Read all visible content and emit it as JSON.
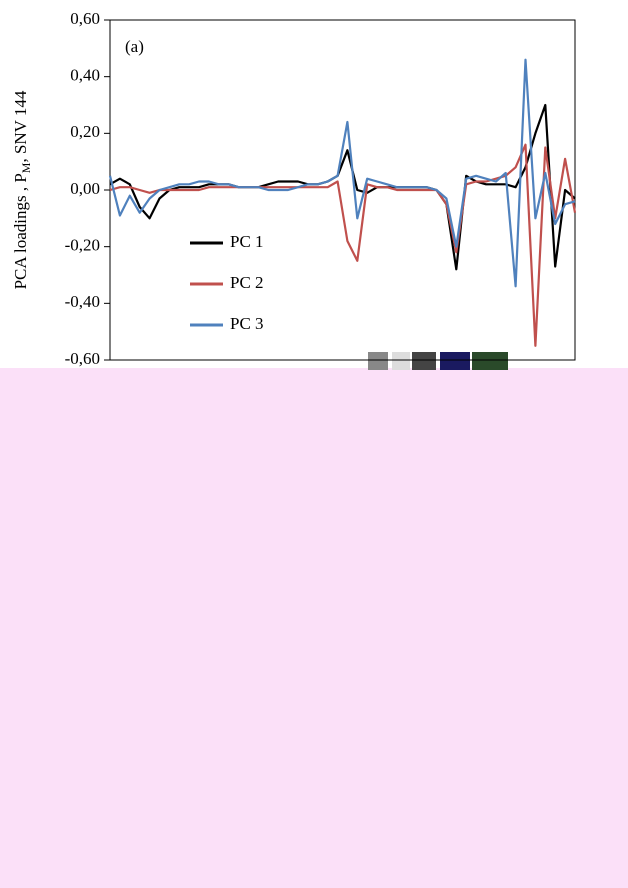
{
  "chart_data": {
    "type": "line",
    "annotation": "(a)",
    "ylabel": [
      "PCA loadings , P",
      "M",
      ", SNV 144"
    ],
    "ylim": [
      -0.6,
      0.6
    ],
    "yticks": [
      {
        "value": 0.6,
        "label": "0,60"
      },
      {
        "value": 0.4,
        "label": "0,40"
      },
      {
        "value": 0.2,
        "label": "0,20"
      },
      {
        "value": 0,
        "label": "0,00"
      },
      {
        "value": -0.2,
        "label": "-0,20"
      },
      {
        "value": -0.4,
        "label": "-0,40"
      },
      {
        "value": -0.6,
        "label": "-0,60"
      }
    ],
    "series": [
      {
        "name": "PC 1",
        "color": "#000000",
        "values": [
          0.02,
          0.04,
          0.02,
          -0.06,
          -0.1,
          -0.03,
          0,
          0.01,
          0.01,
          0.01,
          0.02,
          0.02,
          0.02,
          0.01,
          0.01,
          0.01,
          0.02,
          0.03,
          0.03,
          0.03,
          0.02,
          0.02,
          0.03,
          0.05,
          0.14,
          0,
          -0.01,
          0.01,
          0.01,
          0.01,
          0.01,
          0.01,
          0.01,
          0,
          -0.05,
          -0.28,
          0.05,
          0.03,
          0.02,
          0.02,
          0.02,
          0.01,
          0.08,
          0.2,
          0.3,
          -0.27,
          0,
          -0.03
        ]
      },
      {
        "name": "PC 2",
        "color": "#c0504d",
        "values": [
          0,
          0.01,
          0.01,
          0,
          -0.01,
          0,
          0,
          0,
          0,
          0,
          0.01,
          0.01,
          0.01,
          0.01,
          0.01,
          0.01,
          0.01,
          0.01,
          0.01,
          0.01,
          0.01,
          0.01,
          0.01,
          0.03,
          -0.18,
          -0.25,
          0.02,
          0.01,
          0.01,
          0,
          0,
          0,
          0,
          0,
          -0.05,
          -0.22,
          0.02,
          0.03,
          0.03,
          0.04,
          0.05,
          0.08,
          0.16,
          -0.55,
          0.15,
          -0.1,
          0.11,
          -0.08
        ]
      },
      {
        "name": "PC 3",
        "color": "#4f81bd",
        "values": [
          0.05,
          -0.09,
          -0.02,
          -0.08,
          -0.03,
          0,
          0.01,
          0.02,
          0.02,
          0.03,
          0.03,
          0.02,
          0.02,
          0.01,
          0.01,
          0.01,
          0,
          0,
          0,
          0.01,
          0.02,
          0.02,
          0.03,
          0.05,
          0.24,
          -0.1,
          0.04,
          0.03,
          0.02,
          0.01,
          0.01,
          0.01,
          0.01,
          0,
          -0.03,
          -0.2,
          0.04,
          0.05,
          0.04,
          0.03,
          0.06,
          -0.34,
          0.46,
          -0.1,
          0.06,
          -0.12,
          -0.05,
          -0.04
        ]
      }
    ]
  }
}
